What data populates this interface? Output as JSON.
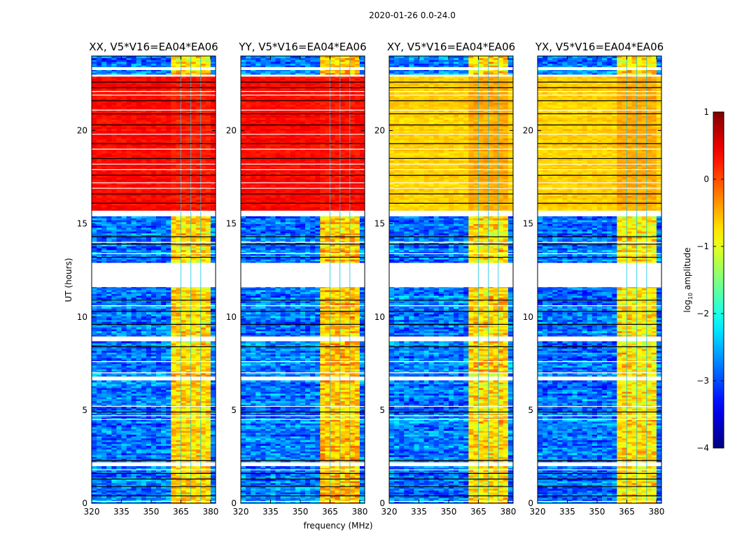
{
  "figure": {
    "suptitle": "2020-01-26 0.0-24.0",
    "xlabel": "frequency (MHz)",
    "ylabel": "UT (hours)"
  },
  "colorbar": {
    "label_prefix": "log",
    "label_sub": "10",
    "label_suffix": " amplitude",
    "ticks": [
      "1",
      "0",
      "−1",
      "−2",
      "−3",
      "−4"
    ],
    "tick_values": [
      1,
      0,
      -1,
      -2,
      -3,
      -4
    ],
    "range": [
      -4,
      1
    ],
    "colormap": "jet"
  },
  "chart_data": {
    "type": "heatmap",
    "xlim": [
      320,
      382.5
    ],
    "ylim": [
      0,
      24
    ],
    "xticks": [
      320,
      335,
      350,
      365,
      380
    ],
    "xtick_labels": [
      "320",
      "335",
      "350",
      "365",
      "380"
    ],
    "yticks": [
      0,
      5,
      10,
      15,
      20
    ],
    "ytick_labels": [
      "0",
      "5",
      "10",
      "15",
      "20"
    ],
    "xlabel": "frequency (MHz)",
    "ylabel": "UT (hours)",
    "value_label": "log10 amplitude",
    "rfi_band_MHz": [
      360,
      379.5
    ],
    "rfi_band_dividers_MHz": [
      365,
      370,
      375
    ],
    "time_segments": [
      {
        "start": 0.0,
        "end": 2.0,
        "regime": "low"
      },
      {
        "start": 2.0,
        "end": 2.2,
        "regime": "flagged"
      },
      {
        "start": 2.2,
        "end": 6.6,
        "regime": "low"
      },
      {
        "start": 6.6,
        "end": 6.8,
        "regime": "flagged"
      },
      {
        "start": 6.8,
        "end": 8.7,
        "regime": "low"
      },
      {
        "start": 8.7,
        "end": 8.95,
        "regime": "flagged"
      },
      {
        "start": 8.95,
        "end": 11.6,
        "regime": "low"
      },
      {
        "start": 11.6,
        "end": 12.9,
        "regime": "flagged"
      },
      {
        "start": 12.9,
        "end": 15.4,
        "regime": "low"
      },
      {
        "start": 15.4,
        "end": 15.7,
        "regime": "flagged"
      },
      {
        "start": 15.7,
        "end": 22.9,
        "regime": "high"
      },
      {
        "start": 22.9,
        "end": 23.0,
        "regime": "flagged"
      },
      {
        "start": 23.0,
        "end": 23.25,
        "regime": "low"
      },
      {
        "start": 23.25,
        "end": 23.4,
        "regime": "flagged"
      },
      {
        "start": 23.4,
        "end": 24.0,
        "regime": "low"
      }
    ],
    "dark_lines_hours": [
      0.4,
      0.9,
      1.3,
      1.6,
      2.3,
      4.9,
      8.4,
      9.6,
      10.3,
      10.9,
      13.2,
      13.9,
      14.3,
      16.1,
      16.6,
      17.6,
      18.5,
      19.3,
      20.3,
      20.9,
      21.6,
      22.3,
      22.6
    ],
    "white_lines_hours": [
      0.1,
      1.8,
      4.5,
      4.7,
      5.2,
      7.0,
      7.6,
      10.6,
      13.4,
      14.0,
      16.9,
      17.2,
      17.9,
      18.2,
      19.0,
      19.8,
      21.1,
      21.9,
      22.1
    ],
    "panels": [
      {
        "title": "XX, V5*V16=EA04*EA06",
        "low_background": -2.8,
        "low_band": -0.7,
        "high_background": 0.35,
        "high_band": 0.25
      },
      {
        "title": "YY, V5*V16=EA04*EA06",
        "low_background": -2.8,
        "low_band": -0.6,
        "high_background": 0.35,
        "high_band": 0.3
      },
      {
        "title": "XY, V5*V16=EA04*EA06",
        "low_background": -2.8,
        "low_band": -0.7,
        "high_background": -0.65,
        "high_band": -0.45
      },
      {
        "title": "YX, V5*V16=EA04*EA06",
        "low_background": -2.8,
        "low_band": -0.75,
        "high_background": -0.65,
        "high_band": -0.45
      }
    ]
  }
}
